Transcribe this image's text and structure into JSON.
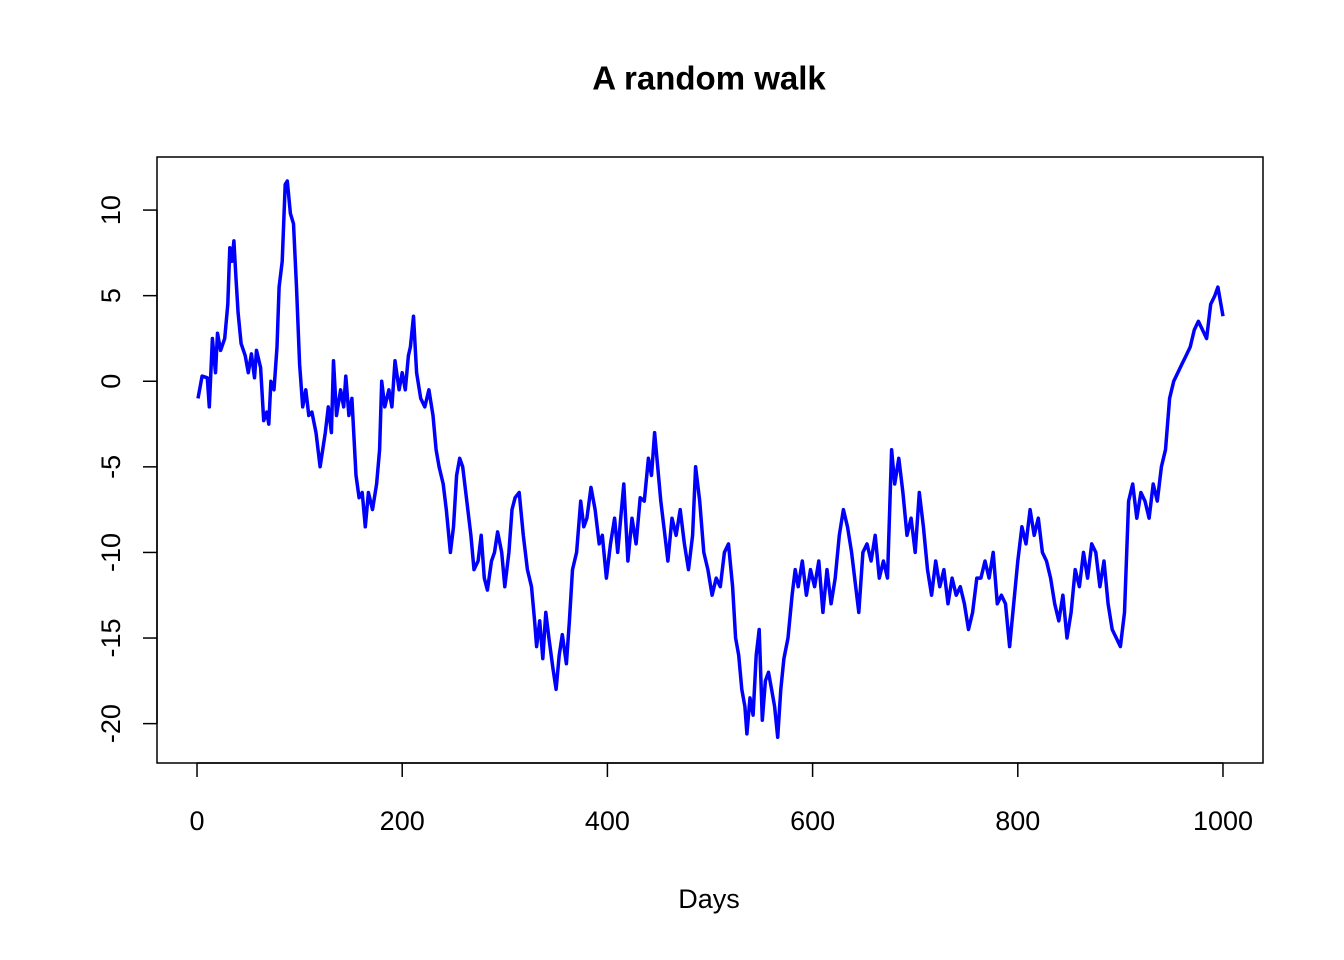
{
  "chart_data": {
    "type": "line",
    "title": "A random walk",
    "x_label": "Days",
    "x": [
      1,
      5,
      10,
      12,
      15,
      18,
      20,
      23,
      27,
      30,
      32,
      34,
      36,
      38,
      40,
      43,
      47,
      50,
      53,
      56,
      58,
      62,
      65,
      68,
      70,
      72,
      75,
      78,
      80,
      83,
      86,
      88,
      91,
      94,
      97,
      100,
      103,
      106,
      109,
      112,
      116,
      120,
      125,
      128,
      131,
      133,
      136,
      140,
      143,
      145,
      148,
      151,
      155,
      158,
      161,
      164,
      167,
      171,
      175,
      178,
      180,
      183,
      187,
      190,
      193,
      197,
      200,
      203,
      206,
      208,
      211,
      214,
      218,
      222,
      226,
      230,
      233,
      236,
      240,
      243,
      247,
      250,
      253,
      256,
      259,
      263,
      267,
      270,
      274,
      277,
      280,
      283,
      287,
      290,
      293,
      297,
      300,
      304,
      307,
      310,
      314,
      318,
      322,
      326,
      329,
      331,
      334,
      337,
      340,
      343,
      347,
      350,
      353,
      356,
      360,
      363,
      366,
      370,
      374,
      377,
      380,
      384,
      388,
      392,
      395,
      399,
      403,
      407,
      410,
      413,
      416,
      420,
      424,
      428,
      432,
      436,
      440,
      443,
      446,
      449,
      452,
      456,
      459,
      463,
      467,
      471,
      475,
      479,
      483,
      486,
      490,
      494,
      498,
      502,
      506,
      510,
      514,
      518,
      522,
      525,
      528,
      531,
      534,
      536,
      539,
      542,
      545,
      548,
      551,
      554,
      557,
      560,
      563,
      566,
      569,
      572,
      576,
      580,
      583,
      586,
      590,
      594,
      598,
      602,
      606,
      610,
      614,
      618,
      622,
      626,
      630,
      634,
      638,
      642,
      645,
      649,
      653,
      657,
      661,
      665,
      669,
      673,
      677,
      680,
      684,
      688,
      692,
      696,
      700,
      704,
      708,
      712,
      716,
      720,
      724,
      728,
      732,
      736,
      740,
      744,
      748,
      752,
      756,
      760,
      764,
      768,
      772,
      776,
      780,
      784,
      788,
      792,
      796,
      800,
      804,
      808,
      812,
      816,
      820,
      824,
      828,
      832,
      836,
      840,
      844,
      848,
      852,
      856,
      860,
      864,
      868,
      872,
      876,
      880,
      884,
      888,
      892,
      896,
      900,
      904,
      908,
      912,
      916,
      920,
      924,
      928,
      932,
      936,
      940,
      944,
      948,
      952,
      956,
      960,
      964,
      968,
      972,
      976,
      980,
      984,
      988,
      992,
      995,
      998,
      1000
    ],
    "series": [
      {
        "color": "#0000ff",
        "values": [
          -1,
          0.3,
          0.2,
          -1.5,
          2.5,
          0.5,
          2.8,
          1.8,
          2.5,
          4.5,
          7.8,
          7,
          8.2,
          6,
          4,
          2.2,
          1.5,
          0.5,
          1.6,
          0.2,
          1.8,
          0.8,
          -2.3,
          -1.8,
          -2.5,
          0,
          -0.5,
          2,
          5.5,
          7,
          11.5,
          11.7,
          9.8,
          9.2,
          5.5,
          1,
          -1.5,
          -0.5,
          -2,
          -1.8,
          -3,
          -5,
          -3,
          -1.5,
          -3,
          1.2,
          -2,
          -0.5,
          -1.5,
          0.3,
          -2,
          -1,
          -5.5,
          -6.8,
          -6.5,
          -8.5,
          -6.5,
          -7.5,
          -6,
          -4,
          0,
          -1.5,
          -0.5,
          -1.5,
          1.2,
          -0.5,
          0.5,
          -0.5,
          1.5,
          2,
          3.8,
          0.5,
          -1,
          -1.5,
          -0.5,
          -2,
          -4,
          -5,
          -6,
          -7.5,
          -10,
          -8.5,
          -5.5,
          -4.5,
          -5,
          -7,
          -9,
          -11,
          -10.5,
          -9,
          -11.5,
          -12.2,
          -10.5,
          -10,
          -8.8,
          -10,
          -12,
          -10,
          -7.5,
          -6.8,
          -6.5,
          -9,
          -11,
          -12,
          -14,
          -15.5,
          -14,
          -16.2,
          -13.5,
          -15,
          -16.8,
          -18,
          -16,
          -14.8,
          -16.5,
          -14,
          -11,
          -10,
          -7,
          -8.5,
          -8,
          -6.2,
          -7.5,
          -9.5,
          -9,
          -11.5,
          -9.5,
          -8,
          -10,
          -8,
          -6,
          -10.5,
          -8,
          -9.5,
          -6.8,
          -7,
          -4.5,
          -5.5,
          -3,
          -5,
          -7,
          -9,
          -10.5,
          -8,
          -9,
          -7.5,
          -9.5,
          -11,
          -9,
          -5,
          -7,
          -10,
          -11,
          -12.5,
          -11.5,
          -12,
          -10,
          -9.5,
          -12,
          -15,
          -16,
          -18,
          -19,
          -20.6,
          -18.5,
          -19.5,
          -16,
          -14.5,
          -19.8,
          -17.5,
          -17,
          -18,
          -19,
          -20.8,
          -18,
          -16.2,
          -15,
          -12.5,
          -11,
          -12,
          -10.5,
          -12.5,
          -11,
          -12,
          -10.5,
          -13.5,
          -11,
          -13,
          -11.5,
          -9,
          -7.5,
          -8.5,
          -10,
          -12,
          -13.5,
          -10,
          -9.5,
          -10.5,
          -9,
          -11.5,
          -10.5,
          -11.5,
          -4,
          -6,
          -4.5,
          -6.5,
          -9,
          -8,
          -10,
          -6.5,
          -8.5,
          -11,
          -12.5,
          -10.5,
          -12,
          -11,
          -13,
          -11.5,
          -12.5,
          -12,
          -13,
          -14.5,
          -13.5,
          -11.5,
          -11.5,
          -10.5,
          -11.5,
          -10,
          -13,
          -12.5,
          -13,
          -15.5,
          -13,
          -10.5,
          -8.5,
          -9.5,
          -7.5,
          -9,
          -8,
          -10,
          -10.5,
          -11.5,
          -13,
          -14,
          -12.5,
          -15,
          -13.5,
          -11,
          -12,
          -10,
          -11.5,
          -9.5,
          -10,
          -12,
          -10.5,
          -13,
          -14.5,
          -15,
          -15.5,
          -13.5,
          -7,
          -6,
          -8,
          -6.5,
          -7,
          -8,
          -6,
          -7,
          -5,
          -4,
          -1,
          0,
          0.5,
          1,
          1.5,
          2,
          3,
          3.5,
          3,
          2.5,
          4.5,
          5,
          5.5,
          4.5,
          3.8
        ]
      }
    ],
    "xlim": [
      -39,
      1039
    ],
    "ylim": [
      -22.3,
      13.1
    ],
    "xticks": [
      0,
      200,
      400,
      600,
      800,
      1000
    ],
    "yticks": [
      -20,
      -15,
      -10,
      -5,
      0,
      5,
      10
    ],
    "grid": false
  }
}
